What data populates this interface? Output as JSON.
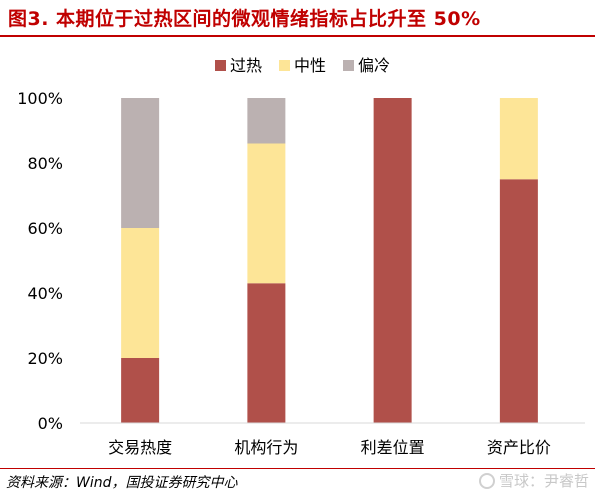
{
  "header": {
    "title": "图3. 本期位于过热区间的微观情绪指标占比升至 50%"
  },
  "footer": {
    "source": "资料来源：Wind，国投证券研究中心",
    "watermark": "雪球：尹睿哲"
  },
  "chart_data": {
    "type": "bar",
    "stacked": true,
    "categories": [
      "交易热度",
      "机构行为",
      "利差位置",
      "资产比价"
    ],
    "series": [
      {
        "name": "过热",
        "color": "#b0504a",
        "values": [
          20,
          43,
          100,
          75
        ]
      },
      {
        "name": "中性",
        "color": "#fde597",
        "values": [
          40,
          43,
          0,
          25
        ]
      },
      {
        "name": "偏冷",
        "color": "#bbb1b1",
        "values": [
          40,
          14,
          0,
          0
        ]
      }
    ],
    "ylim": [
      0,
      100
    ],
    "yticks": [
      "0%",
      "20%",
      "40%",
      "60%",
      "80%",
      "100%"
    ],
    "grid": false,
    "legend_position": "top-center"
  }
}
